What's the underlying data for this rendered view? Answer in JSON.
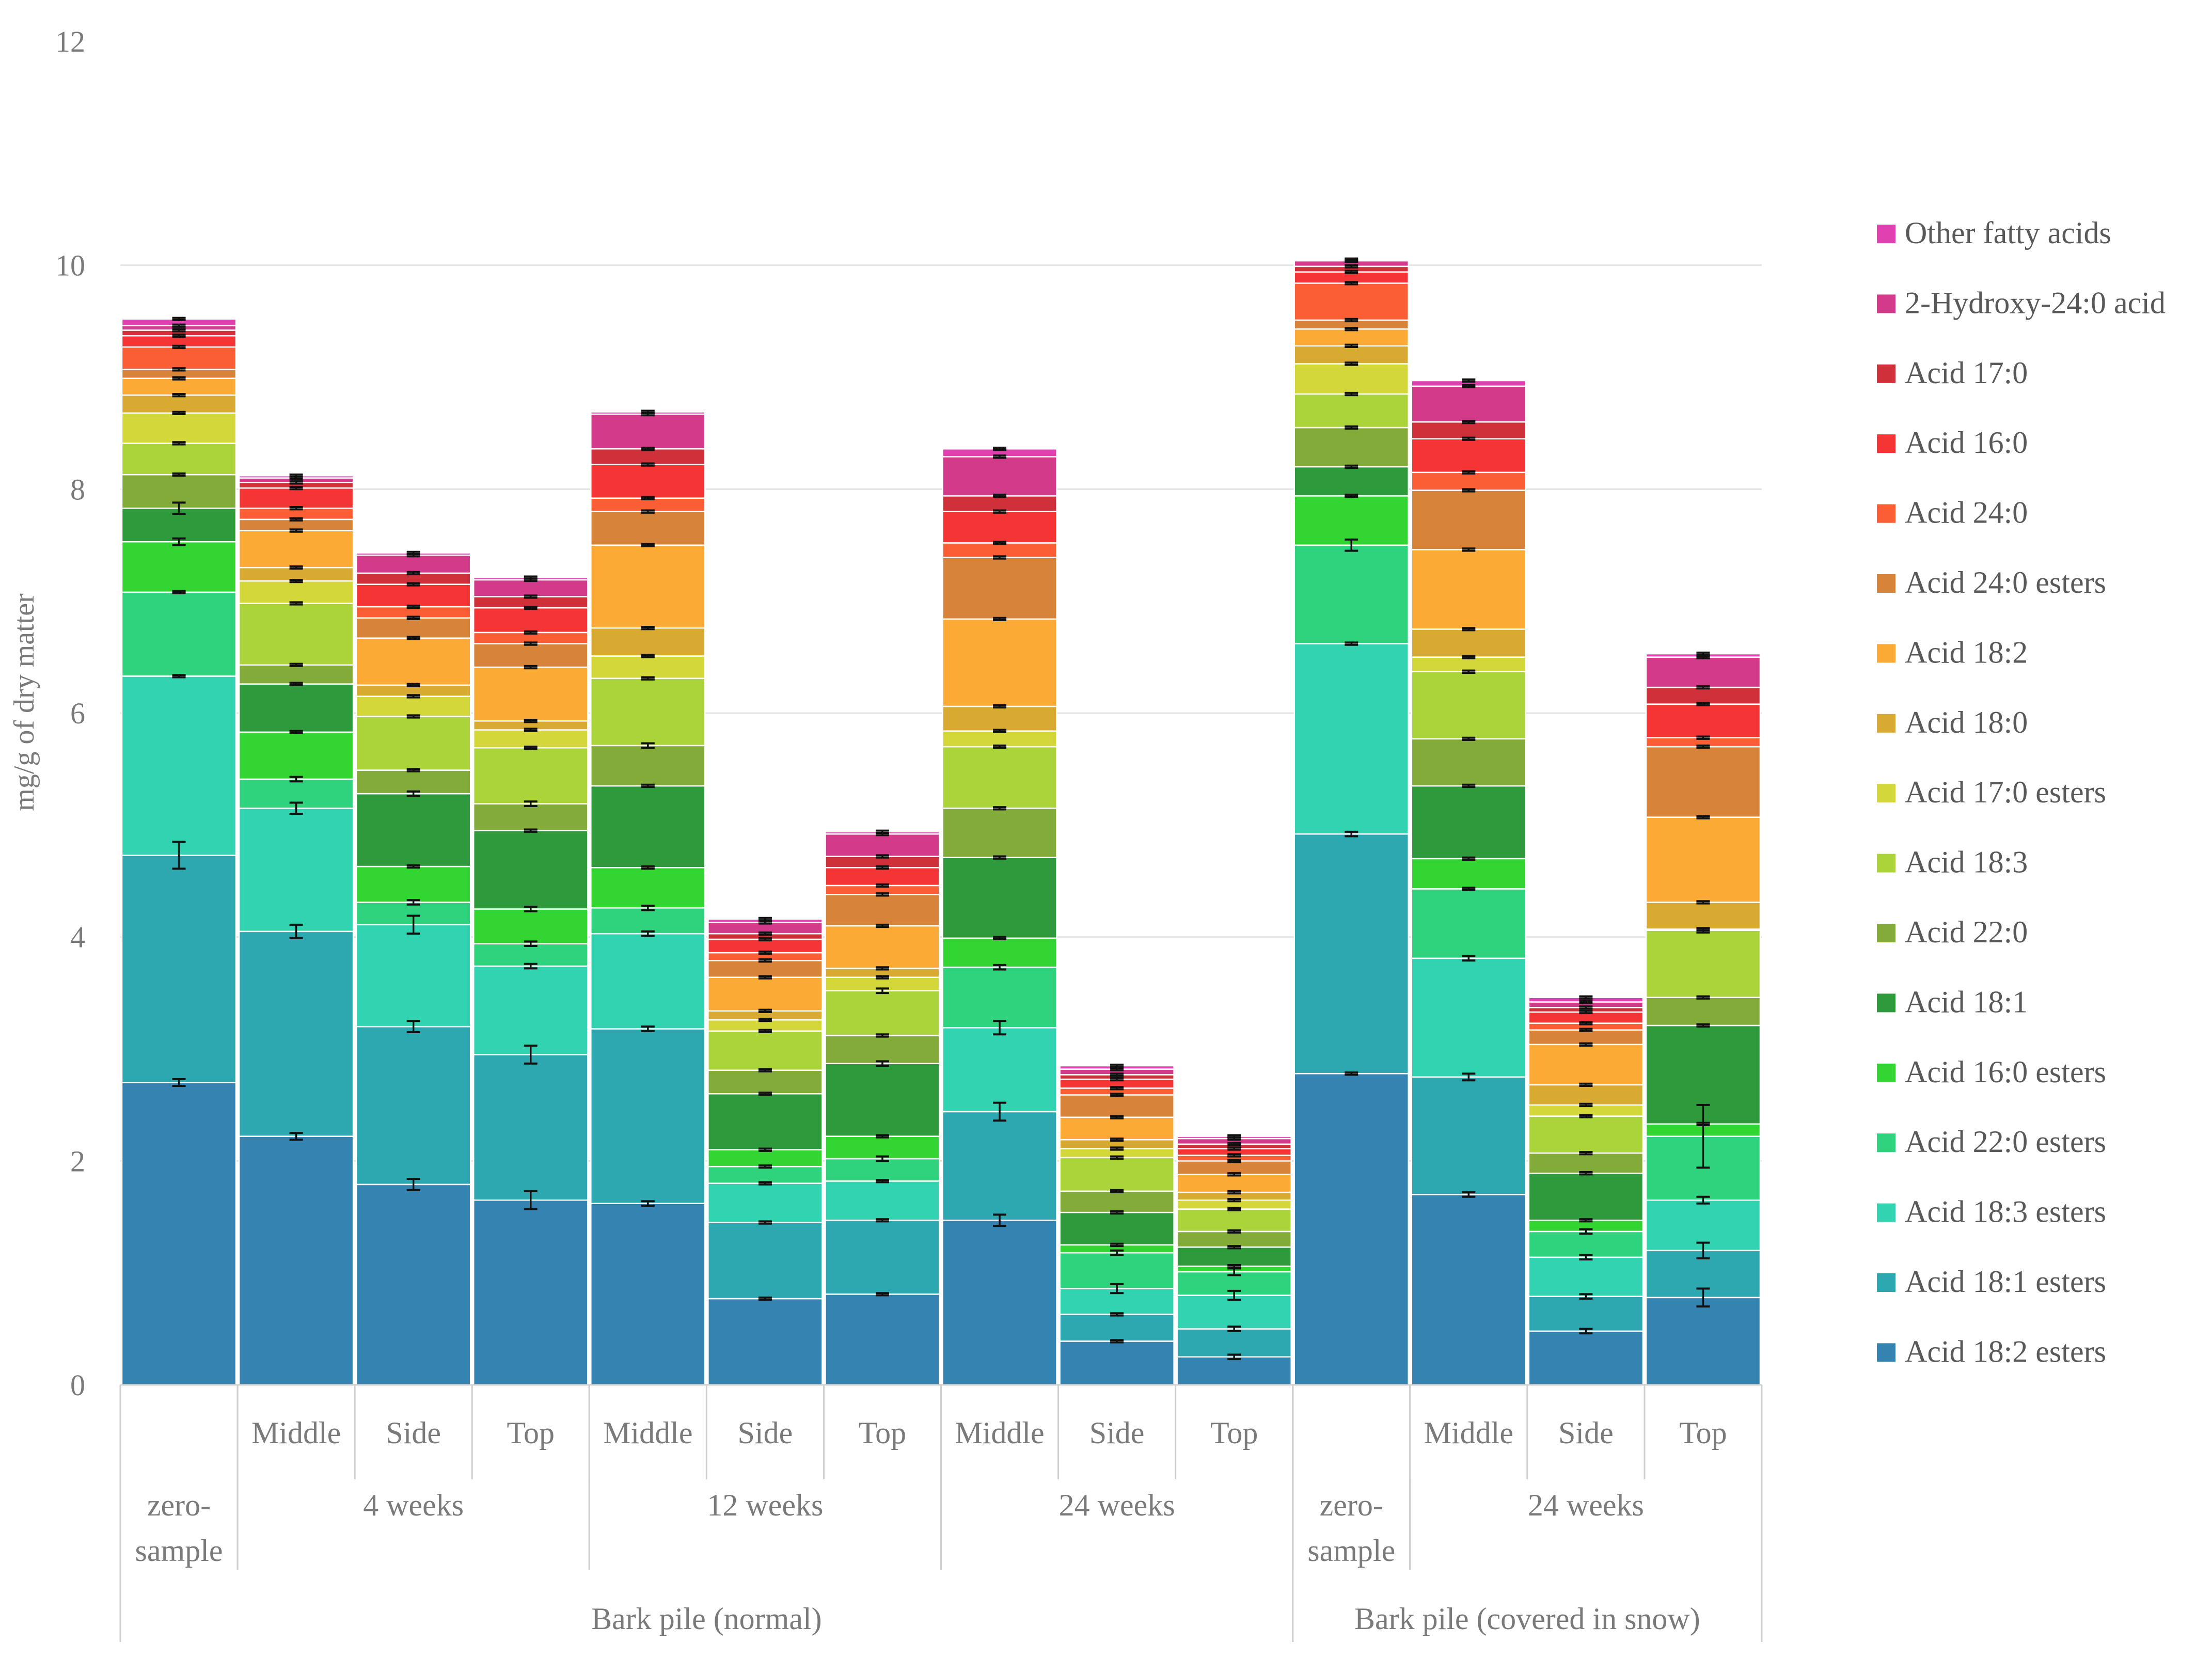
{
  "chart_data": {
    "type": "bar",
    "stacked": true,
    "title": "",
    "xlabel": "",
    "ylabel": "mg/g of dry matter",
    "ylim": [
      0,
      12
    ],
    "yticks": [
      0,
      2,
      4,
      6,
      8,
      10,
      12
    ],
    "grid": true,
    "legend_position": "right",
    "categories": [
      "zero-sample",
      "Middle",
      "Side",
      "Top",
      "Middle",
      "Side",
      "Top",
      "Middle",
      "Side",
      "Top",
      "zero-sample",
      "Middle",
      "Side",
      "Top"
    ],
    "category_lines": [
      [
        "zero-",
        "sample"
      ],
      [
        "Middle"
      ],
      [
        "Side"
      ],
      [
        "Top"
      ],
      [
        "Middle"
      ],
      [
        "Side"
      ],
      [
        "Top"
      ],
      [
        "Middle"
      ],
      [
        "Side"
      ],
      [
        "Top"
      ],
      [
        "zero-",
        "sample"
      ],
      [
        "Middle"
      ],
      [
        "Side"
      ],
      [
        "Top"
      ]
    ],
    "group_level": [
      {
        "label": "",
        "start": 0,
        "end": 0
      },
      {
        "label": "4 weeks",
        "start": 1,
        "end": 3
      },
      {
        "label": "12 weeks",
        "start": 4,
        "end": 6
      },
      {
        "label": "24 weeks",
        "start": 7,
        "end": 9
      },
      {
        "label": "",
        "start": 10,
        "end": 10
      },
      {
        "label": "24 weeks",
        "start": 11,
        "end": 13
      }
    ],
    "pile_level": [
      {
        "label": "Bark pile (normal)",
        "start": 0,
        "end": 9
      },
      {
        "label": "Bark pile (covered in snow)",
        "start": 10,
        "end": 13
      }
    ],
    "series": [
      {
        "name": "Acid 18:2 esters",
        "color": "#3583b0",
        "values": [
          2.7,
          2.22,
          1.79,
          1.65,
          1.62,
          0.77,
          0.81,
          1.47,
          0.39,
          0.25,
          2.78,
          1.7,
          0.48,
          0.78
        ],
        "errors": [
          0.03,
          0.03,
          0.05,
          0.08,
          0.02,
          0.01,
          0.01,
          0.05,
          0.01,
          0.02,
          0.01,
          0.02,
          0.02,
          0.08
        ]
      },
      {
        "name": "Acid 18:1 esters",
        "color": "#2da8b0",
        "values": [
          2.03,
          1.83,
          1.41,
          1.3,
          1.56,
          0.68,
          0.66,
          0.97,
          0.24,
          0.25,
          2.14,
          1.05,
          0.31,
          0.42
        ],
        "errors": [
          0.12,
          0.06,
          0.05,
          0.08,
          0.02,
          0.01,
          0.01,
          0.08,
          0.01,
          0.02,
          0.02,
          0.03,
          0.02,
          0.07
        ]
      },
      {
        "name": "Acid 18:3 esters",
        "color": "#31d3b0",
        "values": [
          1.6,
          1.1,
          0.91,
          0.79,
          0.85,
          0.35,
          0.35,
          0.75,
          0.23,
          0.3,
          1.7,
          1.06,
          0.35,
          0.45
        ],
        "errors": [
          0.01,
          0.05,
          0.08,
          0.02,
          0.02,
          0.01,
          0.01,
          0.06,
          0.04,
          0.04,
          0.01,
          0.02,
          0.02,
          0.03
        ]
      },
      {
        "name": "Acid 22:0 esters",
        "color": "#2fd27d",
        "values": [
          0.75,
          0.26,
          0.2,
          0.2,
          0.23,
          0.15,
          0.2,
          0.54,
          0.32,
          0.21,
          0.88,
          0.62,
          0.23,
          0.57
        ],
        "errors": [
          0.01,
          0.02,
          0.02,
          0.02,
          0.02,
          0.01,
          0.02,
          0.02,
          0.02,
          0.03,
          0.05,
          0.01,
          0.02,
          0.28
        ]
      },
      {
        "name": "Acid 16:0 esters",
        "color": "#32d532",
        "values": [
          0.45,
          0.42,
          0.32,
          0.31,
          0.36,
          0.15,
          0.2,
          0.26,
          0.07,
          0.05,
          0.44,
          0.27,
          0.1,
          0.11
        ],
        "errors": [
          0.03,
          0.01,
          0.01,
          0.02,
          0.01,
          0.01,
          0.01,
          0.01,
          0.01,
          0.01,
          0.01,
          0.01,
          0.01,
          0.01
        ]
      },
      {
        "name": "Acid 18:1",
        "color": "#2e9a3c",
        "values": [
          0.3,
          0.43,
          0.65,
          0.7,
          0.73,
          0.5,
          0.65,
          0.72,
          0.29,
          0.17,
          0.26,
          0.65,
          0.42,
          0.88
        ],
        "errors": [
          0.05,
          0.01,
          0.02,
          0.01,
          0.01,
          0.01,
          0.02,
          0.01,
          0.01,
          0.01,
          0.01,
          0.01,
          0.01,
          0.01
        ]
      },
      {
        "name": "Acid 22:0",
        "color": "#82ab39",
        "values": [
          0.3,
          0.17,
          0.21,
          0.24,
          0.36,
          0.21,
          0.25,
          0.44,
          0.19,
          0.14,
          0.35,
          0.42,
          0.18,
          0.25
        ],
        "errors": [
          0.01,
          0.01,
          0.01,
          0.02,
          0.02,
          0.01,
          0.01,
          0.01,
          0.01,
          0.01,
          0.01,
          0.01,
          0.01,
          0.01
        ]
      },
      {
        "name": "Acid 18:3",
        "color": "#aad43a",
        "values": [
          0.28,
          0.55,
          0.48,
          0.5,
          0.6,
          0.35,
          0.4,
          0.55,
          0.3,
          0.2,
          0.3,
          0.6,
          0.33,
          0.6
        ],
        "errors": [
          0.01,
          0.01,
          0.01,
          0.01,
          0.01,
          0.01,
          0.02,
          0.01,
          0.01,
          0.01,
          0.01,
          0.01,
          0.01,
          0.02
        ]
      },
      {
        "name": "Acid 17:0 esters",
        "color": "#d3d73a",
        "values": [
          0.27,
          0.2,
          0.18,
          0.16,
          0.2,
          0.1,
          0.12,
          0.14,
          0.08,
          0.08,
          0.27,
          0.13,
          0.1,
          0.01
        ],
        "errors": [
          0.01,
          0.01,
          0.01,
          0.01,
          0.01,
          0.01,
          0.01,
          0.01,
          0.01,
          0.01,
          0.01,
          0.01,
          0.01,
          0.01
        ]
      },
      {
        "name": "Acid 18:0",
        "color": "#d8aa32",
        "values": [
          0.16,
          0.12,
          0.1,
          0.08,
          0.25,
          0.08,
          0.08,
          0.22,
          0.08,
          0.07,
          0.16,
          0.25,
          0.18,
          0.24
        ],
        "errors": [
          0.01,
          0.01,
          0.01,
          0.01,
          0.01,
          0.01,
          0.01,
          0.01,
          0.01,
          0.01,
          0.01,
          0.01,
          0.01,
          0.01
        ]
      },
      {
        "name": "Acid 18:2",
        "color": "#fbaa35",
        "values": [
          0.15,
          0.33,
          0.42,
          0.48,
          0.74,
          0.3,
          0.38,
          0.78,
          0.2,
          0.16,
          0.15,
          0.71,
          0.36,
          0.76
        ],
        "errors": [
          0.01,
          0.01,
          0.01,
          0.01,
          0.01,
          0.01,
          0.01,
          0.01,
          0.01,
          0.01,
          0.01,
          0.01,
          0.01,
          0.01
        ]
      },
      {
        "name": "Acid 24:0 esters",
        "color": "#d8833a",
        "values": [
          0.08,
          0.1,
          0.18,
          0.21,
          0.3,
          0.15,
          0.28,
          0.55,
          0.2,
          0.12,
          0.08,
          0.53,
          0.13,
          0.63
        ],
        "errors": [
          0.01,
          0.01,
          0.01,
          0.01,
          0.01,
          0.01,
          0.01,
          0.01,
          0.01,
          0.01,
          0.01,
          0.01,
          0.01,
          0.01
        ]
      },
      {
        "name": "Acid 24:0",
        "color": "#fb5e35",
        "values": [
          0.2,
          0.1,
          0.1,
          0.1,
          0.12,
          0.07,
          0.08,
          0.13,
          0.06,
          0.05,
          0.33,
          0.16,
          0.06,
          0.08
        ],
        "errors": [
          0.01,
          0.01,
          0.01,
          0.01,
          0.01,
          0.01,
          0.01,
          0.01,
          0.01,
          0.01,
          0.01,
          0.01,
          0.01,
          0.01
        ]
      },
      {
        "name": "Acid 16:0",
        "color": "#f53535",
        "values": [
          0.1,
          0.18,
          0.2,
          0.22,
          0.3,
          0.12,
          0.16,
          0.28,
          0.08,
          0.06,
          0.1,
          0.3,
          0.1,
          0.3
        ],
        "errors": [
          0.01,
          0.01,
          0.01,
          0.01,
          0.01,
          0.01,
          0.01,
          0.01,
          0.01,
          0.01,
          0.01,
          0.01,
          0.01,
          0.01
        ]
      },
      {
        "name": "Acid 17:0",
        "color": "#d0303a",
        "values": [
          0.05,
          0.05,
          0.1,
          0.1,
          0.14,
          0.05,
          0.1,
          0.14,
          0.04,
          0.04,
          0.05,
          0.15,
          0.04,
          0.15
        ],
        "errors": [
          0.01,
          0.01,
          0.01,
          0.01,
          0.01,
          0.01,
          0.01,
          0.01,
          0.01,
          0.01,
          0.01,
          0.01,
          0.01,
          0.01
        ]
      },
      {
        "name": "2-Hydroxy-24:0 acid",
        "color": "#d43a8a",
        "values": [
          0.04,
          0.04,
          0.16,
          0.15,
          0.31,
          0.1,
          0.2,
          0.35,
          0.05,
          0.05,
          0.05,
          0.32,
          0.05,
          0.27
        ],
        "errors": [
          0.01,
          0.01,
          0.01,
          0.01,
          0.01,
          0.01,
          0.01,
          0.01,
          0.01,
          0.01,
          0.01,
          0.01,
          0.01,
          0.01
        ]
      },
      {
        "name": "Other fatty acids",
        "color": "#e040b0",
        "values": [
          0.06,
          0.02,
          0.02,
          0.02,
          0.02,
          0.03,
          0.02,
          0.07,
          0.03,
          0.02,
          0.01,
          0.05,
          0.04,
          0.03
        ],
        "errors": [
          0.01,
          0.01,
          0.01,
          0.01,
          0.01,
          0.01,
          0.01,
          0.01,
          0.01,
          0.01,
          0.01,
          0.01,
          0.01,
          0.01
        ]
      }
    ]
  }
}
